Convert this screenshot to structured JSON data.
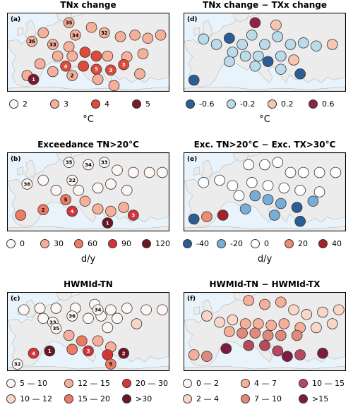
{
  "chart_data": [
    {
      "type": "scatter",
      "title": "TNx change",
      "panel_label": "(a)",
      "legend": {
        "unit": "°C",
        "layout": "single-row",
        "entries": [
          {
            "label": "2",
            "color": "#fdf6f2"
          },
          {
            "label": "3",
            "color": "#f6b09a"
          },
          {
            "label": "4",
            "color": "#e04a3b"
          },
          {
            "label": "5",
            "color": "#7a1a2c"
          }
        ]
      },
      "points": [
        {
          "x": 0.15,
          "y": 0.36,
          "v": 3,
          "tag": "36"
        },
        {
          "x": 0.22,
          "y": 0.25,
          "v": 3
        },
        {
          "x": 0.28,
          "y": 0.4,
          "v": 3,
          "tag": "33"
        },
        {
          "x": 0.38,
          "y": 0.43,
          "v": 3
        },
        {
          "x": 0.38,
          "y": 0.12,
          "v": 3,
          "tag": "35"
        },
        {
          "x": 0.42,
          "y": 0.28,
          "v": 3,
          "tag": "34"
        },
        {
          "x": 0.52,
          "y": 0.18,
          "v": 3
        },
        {
          "x": 0.6,
          "y": 0.25,
          "v": 3,
          "tag": "32"
        },
        {
          "x": 0.7,
          "y": 0.3,
          "v": 3.5
        },
        {
          "x": 0.79,
          "y": 0.28,
          "v": 3.5
        },
        {
          "x": 0.87,
          "y": 0.32,
          "v": 3.5
        },
        {
          "x": 0.95,
          "y": 0.28,
          "v": 3.5
        },
        {
          "x": 0.31,
          "y": 0.55,
          "v": 3
        },
        {
          "x": 0.4,
          "y": 0.55,
          "v": 3.5
        },
        {
          "x": 0.48,
          "y": 0.5,
          "v": 4
        },
        {
          "x": 0.55,
          "y": 0.55,
          "v": 4
        },
        {
          "x": 0.62,
          "y": 0.55,
          "v": 3.5
        },
        {
          "x": 0.74,
          "y": 0.56,
          "v": 3.5
        },
        {
          "x": 0.84,
          "y": 0.52,
          "v": 3.5
        },
        {
          "x": 0.2,
          "y": 0.65,
          "v": 3
        },
        {
          "x": 0.12,
          "y": 0.8,
          "v": 3
        },
        {
          "x": 0.28,
          "y": 0.75,
          "v": 3
        },
        {
          "x": 0.36,
          "y": 0.68,
          "v": 4,
          "tag": "4"
        },
        {
          "x": 0.47,
          "y": 0.68,
          "v": 4.5
        },
        {
          "x": 0.55,
          "y": 0.72,
          "v": 4,
          "tag": "5"
        },
        {
          "x": 0.64,
          "y": 0.73,
          "v": 4,
          "tag": "3"
        },
        {
          "x": 0.72,
          "y": 0.66,
          "v": 4.5,
          "tag": "3"
        },
        {
          "x": 0.16,
          "y": 0.85,
          "v": 5,
          "tag": "1"
        },
        {
          "x": 0.4,
          "y": 0.8,
          "v": 3.5,
          "tag": "2"
        },
        {
          "x": 0.56,
          "y": 0.85,
          "v": 3.5
        },
        {
          "x": 0.66,
          "y": 0.93,
          "v": 3
        },
        {
          "x": 0.82,
          "y": 0.78,
          "v": 3.5
        }
      ]
    },
    {
      "type": "scatter",
      "title": "TNx change − TXx change",
      "panel_label": "(d)",
      "legend": {
        "unit": "°C",
        "layout": "single-row",
        "entries": [
          {
            "label": "-0.6",
            "color": "#2c5d95"
          },
          {
            "label": "-0.2",
            "color": "#bcdbea"
          },
          {
            "label": "0.2",
            "color": "#f6c6b0"
          },
          {
            "label": "0.6",
            "color": "#8e2344"
          }
        ]
      },
      "points": [
        {
          "x": 0.44,
          "y": 0.12,
          "v": 0.6
        },
        {
          "x": 0.57,
          "y": 0.15,
          "v": 0.1
        },
        {
          "x": 0.12,
          "y": 0.33,
          "v": -0.3
        },
        {
          "x": 0.2,
          "y": 0.4,
          "v": -0.3
        },
        {
          "x": 0.28,
          "y": 0.32,
          "v": -0.4
        },
        {
          "x": 0.36,
          "y": 0.4,
          "v": -0.1
        },
        {
          "x": 0.42,
          "y": 0.28,
          "v": 0
        },
        {
          "x": 0.5,
          "y": 0.4,
          "v": 0
        },
        {
          "x": 0.58,
          "y": 0.3,
          "v": 0
        },
        {
          "x": 0.66,
          "y": 0.4,
          "v": 0
        },
        {
          "x": 0.74,
          "y": 0.38,
          "v": 0
        },
        {
          "x": 0.82,
          "y": 0.42,
          "v": 0
        },
        {
          "x": 0.92,
          "y": 0.4,
          "v": 0.2
        },
        {
          "x": 0.3,
          "y": 0.5,
          "v": -0.3
        },
        {
          "x": 0.38,
          "y": 0.55,
          "v": -0.2
        },
        {
          "x": 0.46,
          "y": 0.55,
          "v": -0.3
        },
        {
          "x": 0.52,
          "y": 0.62,
          "v": -0.7
        },
        {
          "x": 0.6,
          "y": 0.55,
          "v": -0.2
        },
        {
          "x": 0.28,
          "y": 0.62,
          "v": 0
        },
        {
          "x": 0.44,
          "y": 0.68,
          "v": -0.2
        },
        {
          "x": 0.6,
          "y": 0.72,
          "v": -0.3
        },
        {
          "x": 0.06,
          "y": 0.86,
          "v": -0.4
        },
        {
          "x": 0.72,
          "y": 0.78,
          "v": -0.4
        },
        {
          "x": 0.68,
          "y": 0.6,
          "v": 0.1
        }
      ]
    },
    {
      "type": "scatter",
      "title": "Exceedance TN>20°C",
      "panel_label": "(b)",
      "legend": {
        "unit": "d/y",
        "layout": "single-row",
        "entries": [
          {
            "label": "0",
            "color": "#fdf6f2"
          },
          {
            "label": "30",
            "color": "#f6b09a"
          },
          {
            "label": "60",
            "color": "#ee7a62"
          },
          {
            "label": "90",
            "color": "#d6333a"
          },
          {
            "label": "120",
            "color": "#6b1526"
          }
        ]
      },
      "points": [
        {
          "x": 0.38,
          "y": 0.12,
          "v": 0,
          "tag": "35"
        },
        {
          "x": 0.5,
          "y": 0.15,
          "v": 0,
          "tag": "34"
        },
        {
          "x": 0.6,
          "y": 0.12,
          "v": 0,
          "tag": "33"
        },
        {
          "x": 0.68,
          "y": 0.22,
          "v": 8
        },
        {
          "x": 0.78,
          "y": 0.25,
          "v": 8
        },
        {
          "x": 0.88,
          "y": 0.25,
          "v": 8
        },
        {
          "x": 0.96,
          "y": 0.25,
          "v": 8
        },
        {
          "x": 0.12,
          "y": 0.4,
          "v": 0,
          "tag": "36"
        },
        {
          "x": 0.22,
          "y": 0.35,
          "v": 0
        },
        {
          "x": 0.4,
          "y": 0.35,
          "v": 0,
          "tag": "32"
        },
        {
          "x": 0.3,
          "y": 0.48,
          "v": 15
        },
        {
          "x": 0.44,
          "y": 0.48,
          "v": 15
        },
        {
          "x": 0.56,
          "y": 0.45,
          "v": 15
        },
        {
          "x": 0.64,
          "y": 0.4,
          "v": 15
        },
        {
          "x": 0.74,
          "y": 0.48,
          "v": 15
        },
        {
          "x": 0.36,
          "y": 0.6,
          "v": 60,
          "tag": "5"
        },
        {
          "x": 0.48,
          "y": 0.62,
          "v": 30
        },
        {
          "x": 0.56,
          "y": 0.72,
          "v": 30
        },
        {
          "x": 0.64,
          "y": 0.75,
          "v": 30
        },
        {
          "x": 0.72,
          "y": 0.7,
          "v": 30
        },
        {
          "x": 0.08,
          "y": 0.8,
          "v": 60
        },
        {
          "x": 0.22,
          "y": 0.73,
          "v": 70,
          "tag": "2"
        },
        {
          "x": 0.4,
          "y": 0.75,
          "v": 90,
          "tag": "4"
        },
        {
          "x": 0.62,
          "y": 0.9,
          "v": 110,
          "tag": "1"
        },
        {
          "x": 0.78,
          "y": 0.8,
          "v": 90,
          "tag": "3"
        }
      ]
    },
    {
      "type": "scatter",
      "title": "Exc. TN>20°C − Exc. TX>30°C",
      "panel_label": "(e)",
      "legend": {
        "unit": "d/y",
        "layout": "single-row",
        "entries": [
          {
            "label": "-40",
            "color": "#2c5d95"
          },
          {
            "label": "-20",
            "color": "#78aed5"
          },
          {
            "label": "0",
            "color": "#ffffff"
          },
          {
            "label": "20",
            "color": "#ec8b73"
          },
          {
            "label": "40",
            "color": "#a5202a"
          }
        ]
      },
      "points": [
        {
          "x": 0.4,
          "y": 0.15,
          "v": 0
        },
        {
          "x": 0.5,
          "y": 0.15,
          "v": 0
        },
        {
          "x": 0.58,
          "y": 0.12,
          "v": 0
        },
        {
          "x": 0.66,
          "y": 0.25,
          "v": 0
        },
        {
          "x": 0.74,
          "y": 0.25,
          "v": 0
        },
        {
          "x": 0.84,
          "y": 0.25,
          "v": 0
        },
        {
          "x": 0.94,
          "y": 0.25,
          "v": 0
        },
        {
          "x": 0.12,
          "y": 0.38,
          "v": 0
        },
        {
          "x": 0.22,
          "y": 0.35,
          "v": 0
        },
        {
          "x": 0.3,
          "y": 0.42,
          "v": 0
        },
        {
          "x": 0.42,
          "y": 0.38,
          "v": -8
        },
        {
          "x": 0.52,
          "y": 0.42,
          "v": -8
        },
        {
          "x": 0.62,
          "y": 0.45,
          "v": -8
        },
        {
          "x": 0.72,
          "y": 0.48,
          "v": -8
        },
        {
          "x": 0.84,
          "y": 0.5,
          "v": -8
        },
        {
          "x": 0.34,
          "y": 0.55,
          "v": -8
        },
        {
          "x": 0.44,
          "y": 0.55,
          "v": -15
        },
        {
          "x": 0.52,
          "y": 0.6,
          "v": -15
        },
        {
          "x": 0.6,
          "y": 0.65,
          "v": -20
        },
        {
          "x": 0.7,
          "y": 0.7,
          "v": -30
        },
        {
          "x": 0.8,
          "y": 0.62,
          "v": -20
        },
        {
          "x": 0.06,
          "y": 0.85,
          "v": -40
        },
        {
          "x": 0.14,
          "y": 0.82,
          "v": 20
        },
        {
          "x": 0.24,
          "y": 0.8,
          "v": 40
        },
        {
          "x": 0.38,
          "y": 0.72,
          "v": -20
        },
        {
          "x": 0.56,
          "y": 0.8,
          "v": -20
        },
        {
          "x": 0.72,
          "y": 0.88,
          "v": -30
        }
      ]
    },
    {
      "type": "scatter",
      "title": "HWMId-TN",
      "panel_label": "(c)",
      "legend": {
        "unit": "",
        "layout": "two-rows",
        "entries": [
          {
            "label": "5 — 10",
            "color": "#fdf6f2"
          },
          {
            "label": "10 — 12",
            "color": "#f9d6c6"
          },
          {
            "label": "12 — 15",
            "color": "#f6b09a"
          },
          {
            "label": "15 — 20",
            "color": "#ee7a62"
          },
          {
            "label": "20 — 30",
            "color": "#d6333a"
          },
          {
            "label": ">30",
            "color": "#6b1526"
          }
        ]
      },
      "points": [
        {
          "x": 0.1,
          "y": 0.22,
          "v": 7
        },
        {
          "x": 0.2,
          "y": 0.2,
          "v": 7
        },
        {
          "x": 0.3,
          "y": 0.2,
          "v": 7
        },
        {
          "x": 0.42,
          "y": 0.2,
          "v": 7
        },
        {
          "x": 0.54,
          "y": 0.15,
          "v": 7
        },
        {
          "x": 0.64,
          "y": 0.22,
          "v": 7
        },
        {
          "x": 0.74,
          "y": 0.2,
          "v": 7
        },
        {
          "x": 0.86,
          "y": 0.22,
          "v": 7
        },
        {
          "x": 0.96,
          "y": 0.22,
          "v": 7
        },
        {
          "x": 0.22,
          "y": 0.33,
          "v": 7
        },
        {
          "x": 0.28,
          "y": 0.38,
          "v": 7,
          "tag": "33"
        },
        {
          "x": 0.3,
          "y": 0.46,
          "v": 7,
          "tag": "35"
        },
        {
          "x": 0.4,
          "y": 0.3,
          "v": 7,
          "tag": "36"
        },
        {
          "x": 0.5,
          "y": 0.33,
          "v": 7
        },
        {
          "x": 0.58,
          "y": 0.3,
          "v": 7
        },
        {
          "x": 0.68,
          "y": 0.33,
          "v": 7
        },
        {
          "x": 0.56,
          "y": 0.22,
          "v": 7,
          "tag": "34"
        },
        {
          "x": 0.62,
          "y": 0.45,
          "v": 7
        },
        {
          "x": 0.8,
          "y": 0.4,
          "v": 11
        },
        {
          "x": 0.38,
          "y": 0.55,
          "v": 13
        },
        {
          "x": 0.46,
          "y": 0.62,
          "v": 17
        },
        {
          "x": 0.56,
          "y": 0.62,
          "v": 13
        },
        {
          "x": 0.64,
          "y": 0.7,
          "v": 13
        },
        {
          "x": 0.16,
          "y": 0.78,
          "v": 22,
          "tag": "4"
        },
        {
          "x": 0.26,
          "y": 0.75,
          "v": 35,
          "tag": "1"
        },
        {
          "x": 0.4,
          "y": 0.73,
          "v": 17
        },
        {
          "x": 0.5,
          "y": 0.75,
          "v": 22,
          "tag": "3"
        },
        {
          "x": 0.62,
          "y": 0.8,
          "v": 22
        },
        {
          "x": 0.72,
          "y": 0.78,
          "v": 35,
          "tag": "2"
        },
        {
          "x": 0.64,
          "y": 0.92,
          "v": 17,
          "tag": "5"
        },
        {
          "x": 0.06,
          "y": 0.92,
          "v": 7,
          "tag": "32"
        }
      ]
    },
    {
      "type": "scatter",
      "title": "HWMId-TN − HWMId-TX",
      "panel_label": "(f)",
      "legend": {
        "unit": "",
        "layout": "two-rows",
        "entries": [
          {
            "label": "0 — 2",
            "color": "#fdf6f2"
          },
          {
            "label": "2 — 4",
            "color": "#f9d6c6"
          },
          {
            "label": "4 — 7",
            "color": "#f6b09a"
          },
          {
            "label": "7 — 10",
            "color": "#df8a7c"
          },
          {
            "label": "10 — 15",
            "color": "#b8485c"
          },
          {
            "label": ">15",
            "color": "#7b1c40"
          }
        ]
      },
      "points": [
        {
          "x": 0.4,
          "y": 0.1,
          "v": 5
        },
        {
          "x": 0.5,
          "y": 0.15,
          "v": 5
        },
        {
          "x": 0.6,
          "y": 0.12,
          "v": 5
        },
        {
          "x": 0.68,
          "y": 0.22,
          "v": 3
        },
        {
          "x": 0.76,
          "y": 0.28,
          "v": 3
        },
        {
          "x": 0.86,
          "y": 0.25,
          "v": 3
        },
        {
          "x": 0.96,
          "y": 0.22,
          "v": 3
        },
        {
          "x": 0.14,
          "y": 0.3,
          "v": 3
        },
        {
          "x": 0.22,
          "y": 0.38,
          "v": 3
        },
        {
          "x": 0.3,
          "y": 0.35,
          "v": 3
        },
        {
          "x": 0.38,
          "y": 0.4,
          "v": 5
        },
        {
          "x": 0.46,
          "y": 0.4,
          "v": 5
        },
        {
          "x": 0.54,
          "y": 0.42,
          "v": 5
        },
        {
          "x": 0.62,
          "y": 0.4,
          "v": 5
        },
        {
          "x": 0.72,
          "y": 0.45,
          "v": 5
        },
        {
          "x": 0.82,
          "y": 0.45,
          "v": 3
        },
        {
          "x": 0.92,
          "y": 0.4,
          "v": 3
        },
        {
          "x": 0.28,
          "y": 0.5,
          "v": 5
        },
        {
          "x": 0.36,
          "y": 0.52,
          "v": 8
        },
        {
          "x": 0.44,
          "y": 0.52,
          "v": 8
        },
        {
          "x": 0.52,
          "y": 0.55,
          "v": 8
        },
        {
          "x": 0.6,
          "y": 0.55,
          "v": 8
        },
        {
          "x": 0.7,
          "y": 0.55,
          "v": 8
        },
        {
          "x": 0.06,
          "y": 0.8,
          "v": 5
        },
        {
          "x": 0.14,
          "y": 0.82,
          "v": 8
        },
        {
          "x": 0.26,
          "y": 0.72,
          "v": 20
        },
        {
          "x": 0.4,
          "y": 0.68,
          "v": 12
        },
        {
          "x": 0.5,
          "y": 0.68,
          "v": 12
        },
        {
          "x": 0.58,
          "y": 0.75,
          "v": 12
        },
        {
          "x": 0.64,
          "y": 0.82,
          "v": 20
        },
        {
          "x": 0.72,
          "y": 0.8,
          "v": 12
        },
        {
          "x": 0.86,
          "y": 0.78,
          "v": 20
        }
      ]
    }
  ]
}
